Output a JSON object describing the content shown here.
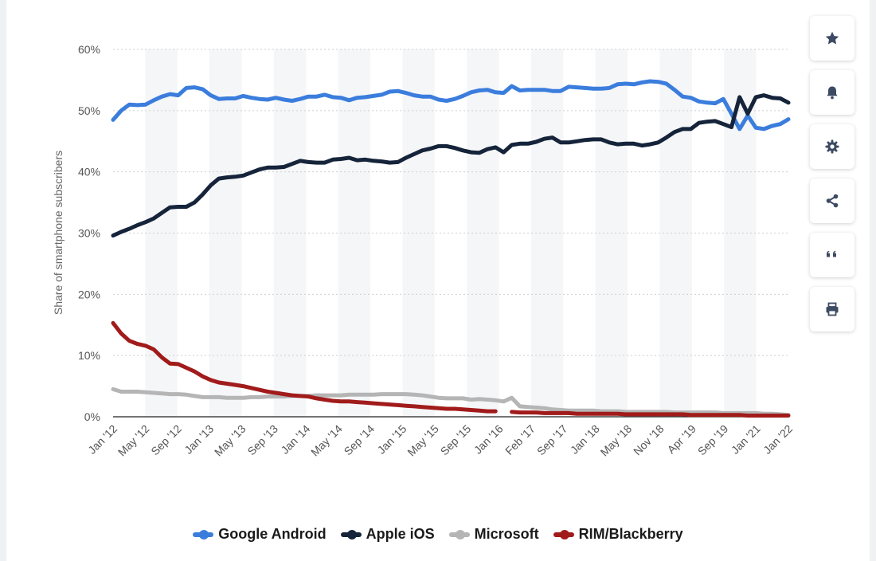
{
  "chart_data": {
    "type": "line",
    "ylabel": "Share of smartphone subscribers",
    "xlabel": "",
    "title": "",
    "ylim": [
      0,
      60
    ],
    "y_ticks": [
      "0%",
      "10%",
      "20%",
      "30%",
      "40%",
      "50%",
      "60%"
    ],
    "x_ticks": [
      "Jan '12",
      "May '12",
      "Sep '12",
      "Jan '13",
      "May '13",
      "Sep '13",
      "Jan '14",
      "May '14",
      "Sep '14",
      "Jan '15",
      "May '15",
      "Sep '15",
      "Jan '16",
      "Feb '17",
      "Sep '17",
      "Jan '18",
      "May '18",
      "Nov '18",
      "Apr '19",
      "Sep '19",
      "Jan '21",
      "Jan '22"
    ],
    "legend_position": "bottom",
    "grid": true,
    "series": [
      {
        "name": "Google Android",
        "color": "#3b7ddd",
        "values": [
          48.5,
          50,
          51,
          50.9,
          51,
          51.7,
          52.3,
          52.7,
          52.5,
          53.7,
          53.8,
          53.5,
          52.5,
          51.9,
          52,
          52,
          52.4,
          52.1,
          51.9,
          51.8,
          52.1,
          51.8,
          51.6,
          51.9,
          52.3,
          52.3,
          52.6,
          52.2,
          52.1,
          51.7,
          52.1,
          52.2,
          52.4,
          52.6,
          53.1,
          53.2,
          52.9,
          52.5,
          52.3,
          52.3,
          51.8,
          51.6,
          51.9,
          52.4,
          53,
          53.3,
          53.4,
          53,
          52.9,
          54,
          53.3,
          53.4,
          53.4,
          53.4,
          53.2,
          53.2,
          53.9,
          53.8,
          53.7,
          53.6,
          53.6,
          53.7,
          54.3,
          54.4,
          54.3,
          54.6,
          54.8,
          54.7,
          54.4,
          53.4,
          52.3,
          52.1,
          51.5,
          51.3,
          51.2,
          51.9,
          49.5,
          47,
          49.2,
          47.2,
          47,
          47.5,
          47.8,
          48.6
        ],
        "gaps": []
      },
      {
        "name": "Apple iOS",
        "color": "#15243a",
        "values": [
          29.6,
          30.2,
          30.7,
          31.3,
          31.8,
          32.4,
          33.3,
          34.2,
          34.3,
          34.3,
          35,
          36.3,
          37.8,
          38.9,
          39.1,
          39.2,
          39.4,
          39.9,
          40.4,
          40.7,
          40.7,
          40.8,
          41.3,
          41.8,
          41.6,
          41.5,
          41.5,
          42,
          42.1,
          42.3,
          41.9,
          42,
          41.8,
          41.7,
          41.5,
          41.6,
          42.3,
          42.9,
          43.5,
          43.8,
          44.2,
          44.2,
          43.9,
          43.5,
          43.2,
          43.1,
          43.7,
          44,
          43.2,
          44.4,
          44.6,
          44.6,
          44.9,
          45.4,
          45.6,
          44.8,
          44.8,
          45,
          45.2,
          45.3,
          45.3,
          44.8,
          44.5,
          44.6,
          44.6,
          44.3,
          44.5,
          44.8,
          45.6,
          46.5,
          47,
          47,
          48,
          48.2,
          48.3,
          47.8,
          47.3,
          52.2,
          49.5,
          52.2,
          52.5,
          52.1,
          52,
          51.3
        ],
        "gaps": []
      },
      {
        "name": "Microsoft",
        "color": "#b5b5b5",
        "values": [
          4.5,
          4.1,
          4.1,
          4.1,
          4,
          3.9,
          3.8,
          3.7,
          3.7,
          3.6,
          3.4,
          3.2,
          3.2,
          3.2,
          3.1,
          3.1,
          3.1,
          3.2,
          3.2,
          3.3,
          3.3,
          3.3,
          3.4,
          3.4,
          3.4,
          3.5,
          3.5,
          3.5,
          3.5,
          3.6,
          3.6,
          3.6,
          3.6,
          3.7,
          3.7,
          3.7,
          3.7,
          3.6,
          3.5,
          3.3,
          3.1,
          3,
          3,
          3,
          2.8,
          2.9,
          2.8,
          2.7,
          2.5,
          3.1,
          1.7,
          1.6,
          1.5,
          1.4,
          1.2,
          1.1,
          1,
          1,
          1,
          1,
          0.9,
          0.9,
          0.9,
          0.8,
          0.8,
          0.8,
          0.8,
          0.8,
          0.8,
          0.7,
          0.7,
          0.7,
          0.7,
          0.7,
          0.7,
          0.6,
          0.6,
          0.6,
          0.6,
          0.6,
          0.5,
          0.5,
          0.4,
          0.3
        ],
        "gaps": []
      },
      {
        "name": "RIM/Blackberry",
        "color": "#a11b1b",
        "values": [
          15.3,
          13.6,
          12.4,
          11.9,
          11.6,
          11,
          9.7,
          8.7,
          8.6,
          8,
          7.4,
          6.6,
          6,
          5.6,
          5.4,
          5.2,
          5,
          4.7,
          4.4,
          4.1,
          3.9,
          3.7,
          3.5,
          3.4,
          3.3,
          3,
          2.8,
          2.6,
          2.5,
          2.5,
          2.4,
          2.3,
          2.2,
          2.1,
          2,
          1.9,
          1.8,
          1.7,
          1.6,
          1.5,
          1.4,
          1.3,
          1.3,
          1.2,
          1.1,
          1,
          0.9,
          0.9,
          null,
          0.8,
          0.7,
          0.7,
          0.7,
          0.6,
          0.6,
          0.6,
          0.6,
          0.5,
          0.5,
          0.5,
          0.5,
          0.5,
          0.5,
          0.4,
          0.4,
          0.4,
          0.4,
          0.4,
          0.4,
          0.4,
          0.4,
          0.3,
          0.3,
          0.3,
          0.3,
          0.3,
          0.3,
          0.3,
          0.2,
          0.2,
          0.2,
          0.2,
          0.2,
          0.2
        ],
        "gaps": []
      }
    ]
  },
  "toolbar": {
    "items": [
      {
        "name": "favorite-button",
        "icon": "star-icon"
      },
      {
        "name": "notification-button",
        "icon": "bell-icon"
      },
      {
        "name": "settings-button",
        "icon": "gear-icon"
      },
      {
        "name": "share-button",
        "icon": "share-icon"
      },
      {
        "name": "cite-button",
        "icon": "quote-icon"
      },
      {
        "name": "print-button",
        "icon": "print-icon"
      }
    ],
    "icon_color": "#3c4a63"
  }
}
